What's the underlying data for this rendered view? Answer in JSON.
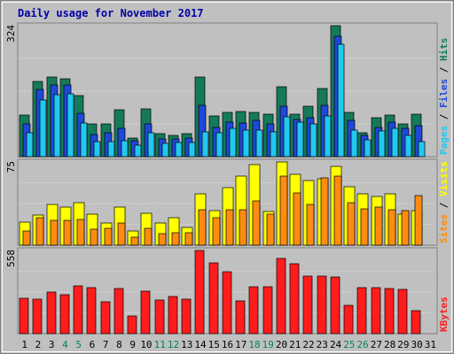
{
  "chart_data": {
    "type": "bar",
    "title": "Daily usage for November 2017",
    "categories": [
      "1",
      "2",
      "3",
      "4",
      "5",
      "6",
      "7",
      "8",
      "9",
      "10",
      "11",
      "12",
      "13",
      "14",
      "15",
      "16",
      "17",
      "18",
      "19",
      "20",
      "21",
      "22",
      "23",
      "24",
      "25",
      "26",
      "27",
      "28",
      "29",
      "30",
      "31"
    ],
    "weekend_days": [
      "4",
      "5",
      "11",
      "12",
      "18",
      "19",
      "25",
      "26"
    ],
    "panels": [
      {
        "id": "hits",
        "ymax_label": "324",
        "ymax": 324,
        "legend": [
          "Pages",
          "Files",
          "Hits"
        ],
        "series": [
          {
            "name": "Hits",
            "color": "#157a5a",
            "values": [
              103,
              187,
              197,
              193,
              150,
              81,
              80,
              117,
              47,
              119,
              57,
              53,
              56,
              196,
              100,
              110,
              111,
              110,
              104,
              172,
              106,
              125,
              168,
              324,
              110,
              60,
              96,
              102,
              80,
              104,
              null
            ]
          },
          {
            "name": "Files",
            "color": "#1f48d8",
            "values": [
              80,
              166,
              178,
              177,
              107,
              55,
              60,
              70,
              39,
              80,
              43,
              43,
              46,
              128,
              72,
              85,
              83,
              90,
              82,
              125,
              93,
              96,
              126,
              297,
              90,
              52,
              72,
              85,
              70,
              76,
              null
            ]
          },
          {
            "name": "Pages",
            "color": "#21c8f0",
            "values": [
              60,
              140,
              154,
              155,
              83,
              38,
              38,
              40,
              28,
              60,
              33,
              34,
              36,
              62,
              60,
              70,
              66,
              66,
              62,
              98,
              85,
              80,
              100,
              278,
              65,
              42,
              63,
              70,
              52,
              37,
              null
            ]
          }
        ]
      },
      {
        "id": "visits",
        "ymax_label": "75",
        "ymax": 75,
        "legend": [
          "Sites",
          "Visits"
        ],
        "series": [
          {
            "name": "Visits",
            "color": "#ffff00",
            "values": [
              21,
              27,
              37,
              34,
              38,
              28,
              20,
              34,
              13,
              29,
              20,
              25,
              16,
              46,
              31,
              52,
              62,
              73,
              30,
              75,
              64,
              58,
              60,
              71,
              53,
              46,
              44,
              46,
              28,
              31,
              null
            ]
          },
          {
            "name": "Sites",
            "color": "#ff8c10",
            "values": [
              13,
              25,
              22,
              22,
              23,
              14,
              15,
              20,
              7,
              15,
              10,
              11,
              11,
              32,
              25,
              32,
              32,
              40,
              28,
              62,
              47,
              37,
              61,
              62,
              38,
              33,
              34,
              32,
              31,
              45,
              null
            ]
          }
        ]
      },
      {
        "id": "kbytes",
        "ymax_label": "558",
        "ymax": 558,
        "legend": [
          "KBytes"
        ],
        "series": [
          {
            "name": "KBytes",
            "color": "#ff1c1c",
            "values": [
              235,
              233,
              277,
              260,
              318,
              307,
              215,
              302,
              118,
              282,
              228,
              247,
              233,
              558,
              475,
              415,
              220,
              313,
              313,
              507,
              470,
              383,
              388,
              380,
              190,
              307,
              308,
              300,
              298,
              155,
              null
            ]
          }
        ]
      }
    ]
  }
}
